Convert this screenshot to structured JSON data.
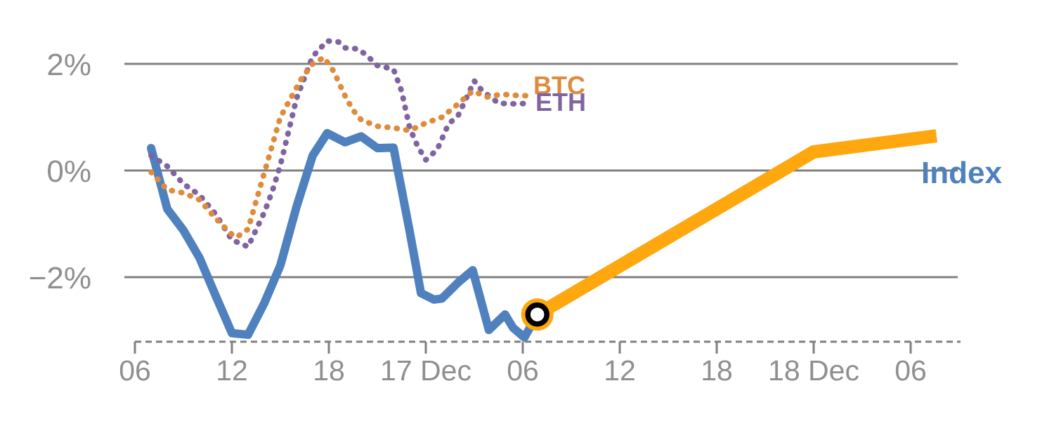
{
  "page": {
    "background": "#ffffff"
  },
  "chart_data": {
    "type": "line",
    "title": "",
    "grid": true,
    "legend_position": "inline-labels",
    "y_axis": {
      "unit": "%",
      "range": [
        -3.2,
        2.8
      ],
      "ticks": [
        {
          "v": 2,
          "label": "2%"
        },
        {
          "v": 0,
          "label": "0%"
        },
        {
          "v": -2,
          "label": "−2%"
        }
      ]
    },
    "x_axis": {
      "unit": "time (6-hour tick spacing)",
      "range": [
        0,
        51.1
      ],
      "ticks": [
        {
          "t": 0,
          "label": "06"
        },
        {
          "t": 6,
          "label": "12"
        },
        {
          "t": 12,
          "label": "18"
        },
        {
          "t": 18,
          "label": "17 Dec"
        },
        {
          "t": 24,
          "label": "06"
        },
        {
          "t": 30,
          "label": "12"
        },
        {
          "t": 36,
          "label": "18"
        },
        {
          "t": 42,
          "label": "18 Dec"
        },
        {
          "t": 48,
          "label": "06"
        }
      ]
    },
    "series": [
      {
        "name": "Index",
        "label": "Index",
        "style": "solid",
        "color": "#4E81BD",
        "stroke_width": 12,
        "points": [
          [
            1,
            0.42
          ],
          [
            2,
            -0.72
          ],
          [
            3,
            -1.12
          ],
          [
            4,
            -1.64
          ],
          [
            5,
            -2.35
          ],
          [
            6,
            -3.05
          ],
          [
            7,
            -3.08
          ],
          [
            8,
            -2.49
          ],
          [
            9,
            -1.78
          ],
          [
            10,
            -0.68
          ],
          [
            11,
            0.28
          ],
          [
            11.9,
            0.7
          ],
          [
            13,
            0.53
          ],
          [
            14,
            0.64
          ],
          [
            15,
            0.42
          ],
          [
            16,
            0.43
          ],
          [
            17,
            -1.14
          ],
          [
            17.7,
            -2.3
          ],
          [
            18.5,
            -2.42
          ],
          [
            19,
            -2.4
          ],
          [
            20,
            -2.1
          ],
          [
            20.9,
            -1.87
          ],
          [
            21.9,
            -2.99
          ],
          [
            22.9,
            -2.7
          ],
          [
            23.4,
            -2.95
          ],
          [
            24.1,
            -3.13
          ],
          [
            24.9,
            -2.7
          ]
        ]
      },
      {
        "name": "ETH",
        "label": "ETH",
        "style": "dotted",
        "color": "#8064A2",
        "stroke_width": 8,
        "points": [
          [
            1,
            0.28
          ],
          [
            2,
            0.08
          ],
          [
            3,
            -0.25
          ],
          [
            4,
            -0.46
          ],
          [
            5,
            -0.82
          ],
          [
            6,
            -1.3
          ],
          [
            7,
            -1.43
          ],
          [
            8,
            -0.79
          ],
          [
            8.5,
            -0.39
          ],
          [
            9,
            0.1
          ],
          [
            10,
            1.35
          ],
          [
            11,
            2.14
          ],
          [
            11.9,
            2.43
          ],
          [
            12.6,
            2.41
          ],
          [
            13,
            2.3
          ],
          [
            13.8,
            2.28
          ],
          [
            14.3,
            2.17
          ],
          [
            15,
            1.97
          ],
          [
            16,
            1.9
          ],
          [
            16.5,
            1.49
          ],
          [
            17,
            0.8
          ],
          [
            17.5,
            0.45
          ],
          [
            18,
            0.2
          ],
          [
            18.7,
            0.39
          ],
          [
            19.4,
            0.87
          ],
          [
            20,
            1.03
          ],
          [
            20.4,
            1.29
          ],
          [
            21,
            1.68
          ],
          [
            21.5,
            1.49
          ],
          [
            22,
            1.38
          ],
          [
            22.5,
            1.26
          ],
          [
            23.5,
            1.25
          ],
          [
            24.5,
            1.26
          ]
        ]
      },
      {
        "name": "BTC",
        "label": "BTC",
        "style": "dotted",
        "color": "#DE8C3C",
        "stroke_width": 8,
        "points": [
          [
            1,
            -0.03
          ],
          [
            2,
            -0.36
          ],
          [
            3,
            -0.42
          ],
          [
            4,
            -0.55
          ],
          [
            5,
            -0.9
          ],
          [
            6,
            -1.2
          ],
          [
            6.3,
            -1.25
          ],
          [
            7,
            -1.1
          ],
          [
            8,
            -0.05
          ],
          [
            9,
            1.0
          ],
          [
            10.3,
            1.72
          ],
          [
            11,
            2.0
          ],
          [
            11.7,
            2.12
          ],
          [
            12.3,
            1.86
          ],
          [
            13,
            1.4
          ],
          [
            13.5,
            1.13
          ],
          [
            14,
            0.95
          ],
          [
            15,
            0.83
          ],
          [
            16,
            0.8
          ],
          [
            17,
            0.75
          ],
          [
            18,
            0.89
          ],
          [
            19,
            1.0
          ],
          [
            20,
            1.25
          ],
          [
            20.9,
            1.49
          ],
          [
            21.8,
            1.38
          ],
          [
            22.7,
            1.43
          ],
          [
            23.5,
            1.41
          ],
          [
            24.4,
            1.4
          ]
        ]
      },
      {
        "name": "Index projection",
        "label": null,
        "style": "solid",
        "color": "#FFA70F",
        "stroke_width": 19,
        "points": [
          [
            24.9,
            -2.7
          ],
          [
            42,
            0.35
          ],
          [
            49.6,
            0.65
          ]
        ],
        "start_marker": {
          "t": 24.9,
          "v": -2.7,
          "shape": "open-circle",
          "halo_color": "#FFA70F",
          "ring_color": "#000000",
          "center_fill": "#ffffff"
        }
      }
    ],
    "styles": {
      "grid_color": "#808080",
      "axis_color": "#808080",
      "tick_label_color": "#8f8f8f",
      "index_label_color": "#4E81BD",
      "btc_label_color": "#DE8C3C",
      "eth_label_color": "#8064A2"
    }
  }
}
